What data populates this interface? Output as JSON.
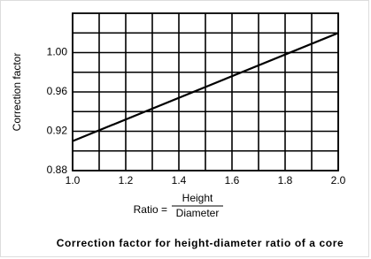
{
  "chart_data": {
    "type": "line",
    "ylabel": "Correction factor",
    "xlabel": {
      "prefix": "Ratio =",
      "numerator": "Height",
      "denominator": "Diameter"
    },
    "caption": "Correction factor for height-diameter ratio of a core",
    "x": [
      1.0,
      2.0
    ],
    "series": [
      {
        "color": "#000000",
        "values": [
          0.91,
          1.02
        ]
      }
    ],
    "xlim": [
      1.0,
      2.0
    ],
    "xticks": [
      {
        "value": 1,
        "label": "1.0"
      },
      1.2,
      1.4,
      1.6,
      1.8,
      {
        "value": 2,
        "label": "2.0"
      }
    ],
    "xminor": [
      1.1,
      1.3,
      1.5,
      1.7,
      1.9
    ],
    "ylim": [
      0.88,
      1.04
    ],
    "yticks": [
      0.88,
      0.92,
      0.96,
      {
        "value": 1,
        "label": "1.00"
      }
    ],
    "yminor": [
      0.9,
      0.94,
      0.98,
      1.02
    ],
    "grid": true
  }
}
